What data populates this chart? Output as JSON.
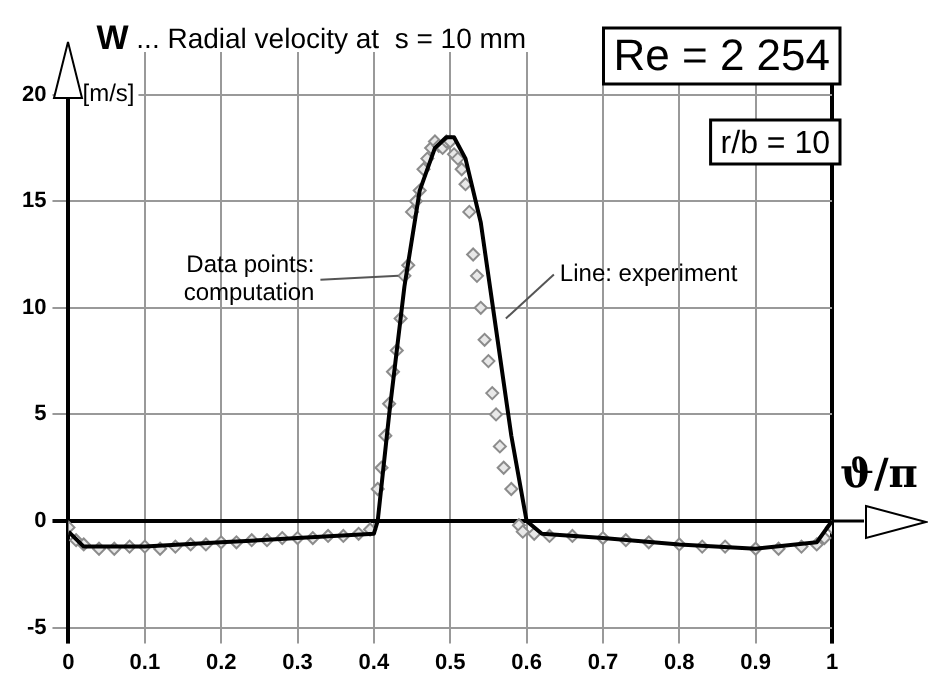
{
  "chart_data": {
    "type": "scatter",
    "title": "W ... Radial velocity at  s = 10 mm",
    "ylabel": "[m/s]",
    "xlabel": "ϑ/π",
    "xlim": [
      0,
      1
    ],
    "xticks": [
      0,
      0.1,
      0.2,
      0.3,
      0.4,
      0.5,
      0.6,
      0.7,
      0.8,
      0.9,
      1
    ],
    "ylim": [
      -5,
      22
    ],
    "yticks": [
      -5,
      0,
      5,
      10,
      15,
      20
    ],
    "grid": true,
    "legend": false,
    "series": [
      {
        "marker": "diamond",
        "color": "#8c8c8c",
        "x": [
          0,
          0.01,
          0.02,
          0.04,
          0.06,
          0.08,
          0.1,
          0.12,
          0.14,
          0.16,
          0.18,
          0.2,
          0.22,
          0.24,
          0.26,
          0.28,
          0.3,
          0.32,
          0.34,
          0.36,
          0.38,
          0.395,
          0.405,
          0.41,
          0.415,
          0.42,
          0.425,
          0.43,
          0.435,
          0.44,
          0.445,
          0.45,
          0.455,
          0.46,
          0.465,
          0.47,
          0.475,
          0.48,
          0.485,
          0.49,
          0.495,
          0.5,
          0.505,
          0.51,
          0.515,
          0.52,
          0.525,
          0.53,
          0.535,
          0.54,
          0.545,
          0.55,
          0.555,
          0.56,
          0.565,
          0.57,
          0.58,
          0.59,
          0.595,
          0.61,
          0.63,
          0.66,
          0.7,
          0.73,
          0.76,
          0.8,
          0.83,
          0.86,
          0.9,
          0.93,
          0.96,
          0.98,
          0.99,
          1
        ],
        "values": [
          -0.3,
          -0.9,
          -1.1,
          -1.3,
          -1.3,
          -1.2,
          -1.2,
          -1.3,
          -1.2,
          -1.1,
          -1.1,
          -1,
          -1,
          -0.9,
          -0.9,
          -0.8,
          -0.8,
          -0.8,
          -0.7,
          -0.7,
          -0.6,
          -0.4,
          1.5,
          2.5,
          4,
          5.5,
          7,
          8,
          9.5,
          11.5,
          12,
          14.5,
          15,
          15.5,
          16.5,
          17,
          17.5,
          17.8,
          17.6,
          17.5,
          17.8,
          17.8,
          17.2,
          17,
          16.5,
          15.8,
          14.5,
          12.5,
          11.5,
          10,
          8.5,
          7.5,
          6,
          5,
          3.5,
          2.5,
          1.5,
          -0.2,
          -0.5,
          -0.6,
          -0.7,
          -0.7,
          -0.8,
          -0.9,
          -1,
          -1.1,
          -1.2,
          -1.2,
          -1.3,
          -1.3,
          -1.2,
          -1.1,
          -0.8,
          -0.3
        ]
      },
      {
        "type": "line",
        "marker": "none",
        "color": "#000000",
        "x": [
          0,
          0.02,
          0.1,
          0.2,
          0.3,
          0.4,
          0.405,
          0.42,
          0.44,
          0.46,
          0.48,
          0.495,
          0.505,
          0.52,
          0.54,
          0.56,
          0.58,
          0.6,
          0.62,
          0.7,
          0.8,
          0.9,
          0.98,
          1
        ],
        "values": [
          -0.5,
          -1.2,
          -1.2,
          -1,
          -0.8,
          -0.6,
          0,
          5,
          11,
          15.5,
          17.5,
          18,
          18,
          17,
          14,
          9,
          4,
          0,
          -0.6,
          -0.8,
          -1.1,
          -1.3,
          -1,
          0
        ]
      }
    ],
    "annotations": [
      "Re = 2 254",
      "r/b = 10",
      {
        "text": "Data points: computation",
        "x": 0.44,
        "y": 11.5
      },
      {
        "text": "Line: experiment",
        "x": 0.565,
        "y": 9.5
      }
    ]
  }
}
